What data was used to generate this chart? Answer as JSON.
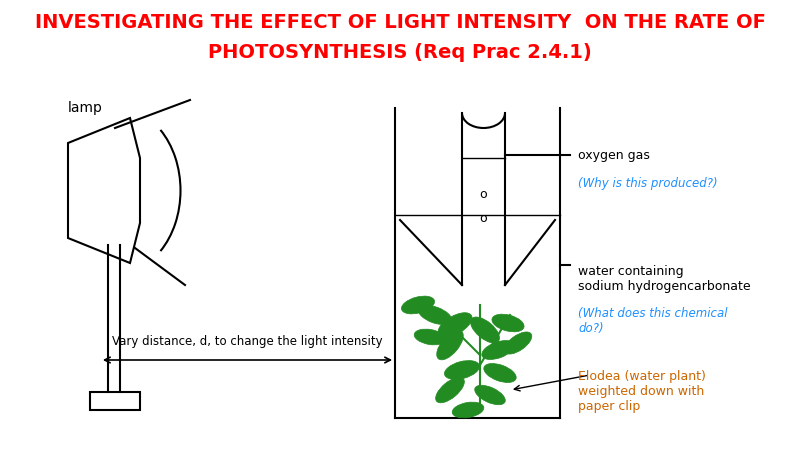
{
  "title_line1": "INVESTIGATING THE EFFECT OF LIGHT INTENSITY  ON THE RATE OF",
  "title_line2": "PHOTOSYNTHESIS (Req Prac 2.4.1)",
  "title_color": "#ff0000",
  "title_fontsize": 14,
  "bg_color": "#ffffff",
  "lamp_label": "lamp",
  "distance_label": "Vary distance, d, to change the light intensity",
  "oxygen_label": "oxygen gas",
  "oxygen_question": "(Why is this produced?)",
  "water_label": "water containing\nsodium hydrogencarbonate",
  "water_question": "(What does this chemical\ndo?)",
  "elodea_label": "Elodea (water plant)\nweighted down with\npaper clip",
  "question_color": "#1e90ff",
  "elodea_color": "#cc6600",
  "label_color": "#000000",
  "diagram_color": "#000000",
  "plant_color": "#228b22"
}
